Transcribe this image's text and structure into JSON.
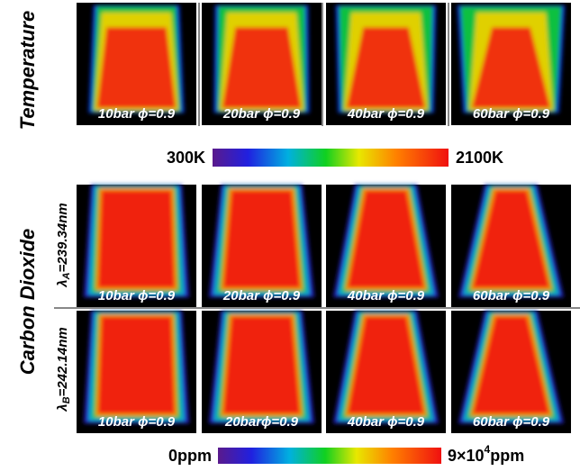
{
  "row_labels": {
    "temperature": "Temperature",
    "carbon_dioxide": "Carbon Dioxide"
  },
  "wavelengths": [
    {
      "symbol": "λ",
      "sub": "A",
      "text": "=239.34nm"
    },
    {
      "symbol": "λ",
      "sub": "B",
      "text": "=242.14nm"
    }
  ],
  "panels": [
    [
      "10bar ϕ=0.9",
      "20bar ϕ=0.9",
      "40bar ϕ=0.9",
      "60bar ϕ=0.9"
    ],
    [
      "10bar ϕ=0.9",
      "20bar ϕ=0.9",
      "40bar ϕ=0.9",
      "60bar ϕ=0.9"
    ],
    [
      "10bar ϕ=0.9",
      "20barϕ=0.9",
      "40bar ϕ=0.9",
      "60bar ϕ=0.9"
    ]
  ],
  "colorbars": {
    "temperature": {
      "min": "300K",
      "max": "2100K"
    },
    "co2": {
      "min": "0ppm",
      "max": {
        "base": "9×10",
        "exp": "4",
        "unit": "ppm"
      }
    }
  }
}
